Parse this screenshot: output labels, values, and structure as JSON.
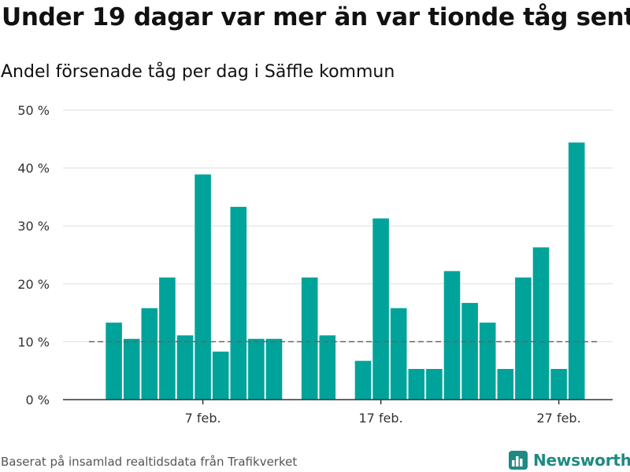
{
  "header": {
    "title": "Under 19 dagar var mer än var tionde tåg sent",
    "subtitle": "Andel försenade tåg per dag i Säffle kommun"
  },
  "footer": {
    "source": "Baserat på insamlad realtidsdata från Trafikverket",
    "brand": "Newsworthy",
    "brand_icon": "bar-chart-logo-icon"
  },
  "colors": {
    "bar": "#00a39a",
    "grid": "#dddddd",
    "reference_line": "#666666",
    "axis": "#333333",
    "brand": "#1e8a82"
  },
  "chart_data": {
    "type": "bar",
    "title": "Under 19 dagar var mer än var tionde tåg sent",
    "subtitle": "Andel försenade tåg per dag i Säffle kommun",
    "xlabel": "",
    "ylabel": "",
    "ylim": [
      0,
      50
    ],
    "yticks": [
      0,
      10,
      20,
      30,
      40,
      50
    ],
    "ytick_labels": [
      "0 %",
      "10 %",
      "20 %",
      "30 %",
      "40 %",
      "50 %"
    ],
    "x_domain": [
      "2024-02-01",
      "2024-02-29"
    ],
    "xticks": [
      {
        "date": "2024-02-07",
        "label": "7 feb."
      },
      {
        "date": "2024-02-17",
        "label": "17 feb."
      },
      {
        "date": "2024-02-27",
        "label": "27 feb."
      }
    ],
    "reference_line": {
      "value": 10,
      "style": "dashed"
    },
    "grid": true,
    "legend": "none",
    "x": [
      "2024-02-02",
      "2024-02-03",
      "2024-02-04",
      "2024-02-05",
      "2024-02-06",
      "2024-02-07",
      "2024-02-08",
      "2024-02-09",
      "2024-02-10",
      "2024-02-11",
      "2024-02-12",
      "2024-02-13",
      "2024-02-14",
      "2024-02-15",
      "2024-02-16",
      "2024-02-17",
      "2024-02-18",
      "2024-02-19",
      "2024-02-20",
      "2024-02-21",
      "2024-02-22",
      "2024-02-23",
      "2024-02-24",
      "2024-02-25",
      "2024-02-26",
      "2024-02-27",
      "2024-02-28"
    ],
    "values": [
      13.3,
      10.5,
      15.8,
      21.1,
      11.1,
      38.9,
      8.3,
      33.3,
      10.5,
      10.5,
      null,
      21.1,
      11.1,
      null,
      6.7,
      31.3,
      15.8,
      5.3,
      5.3,
      22.2,
      16.7,
      13.3,
      5.3,
      21.1,
      26.3,
      5.3,
      44.4
    ]
  }
}
